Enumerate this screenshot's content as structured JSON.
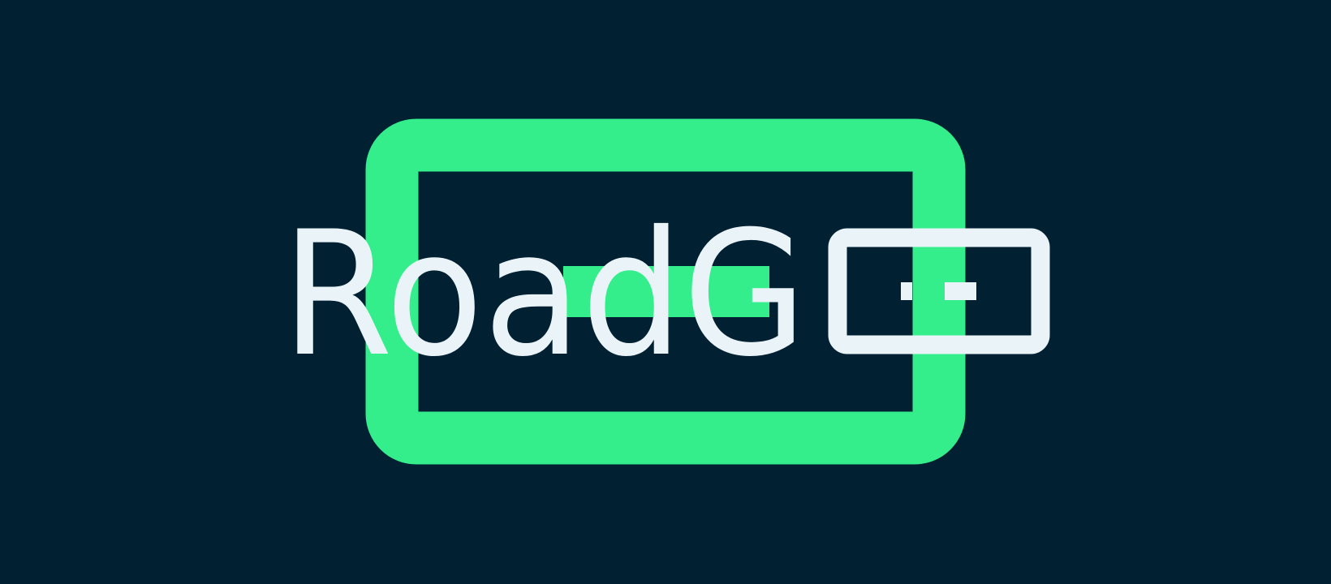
{
  "logo": {
    "text": "RoadG"
  }
}
